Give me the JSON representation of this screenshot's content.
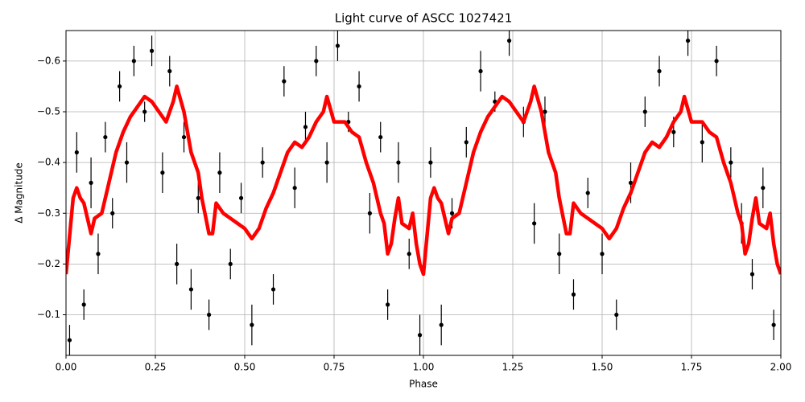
{
  "chart_data": {
    "type": "scatter",
    "title": "Light curve of ASCC 1027421",
    "x_label": "Phase",
    "y_label": "Δ Magnitude",
    "xlim": [
      0,
      2
    ],
    "ylim": [
      -0.02,
      -0.66
    ],
    "xticks": [
      {
        "value": 0,
        "label": "0.00"
      },
      {
        "value": 0.25,
        "label": "0.25"
      },
      {
        "value": 0.5,
        "label": "0.50"
      },
      {
        "value": 0.75,
        "label": "0.75"
      },
      {
        "value": 1,
        "label": "1.00"
      },
      {
        "value": 1.25,
        "label": "1.25"
      },
      {
        "value": 1.5,
        "label": "1.50"
      },
      {
        "value": 1.75,
        "label": "1.75"
      },
      {
        "value": 2,
        "label": "2.00"
      }
    ],
    "yticks": [
      {
        "value": -0.1,
        "label": "−0.1"
      },
      {
        "value": -0.2,
        "label": "−0.2"
      },
      {
        "value": -0.3,
        "label": "−0.3"
      },
      {
        "value": -0.4,
        "label": "−0.4"
      },
      {
        "value": -0.5,
        "label": "−0.5"
      },
      {
        "value": -0.6,
        "label": "−0.6"
      }
    ],
    "grid": true,
    "series": [
      {
        "type": "scatter",
        "color": "#000000",
        "x": [
          0.01,
          0.03,
          0.05,
          0.07,
          0.09,
          0.11,
          0.13,
          0.15,
          0.17,
          0.19,
          0.22,
          0.24,
          0.27,
          0.29,
          0.31,
          0.33,
          0.35,
          0.37,
          0.4,
          0.43,
          0.46,
          0.49,
          0.52,
          0.55,
          0.58,
          0.61,
          0.64,
          0.67,
          0.7,
          0.73,
          0.76,
          0.79,
          0.82,
          0.85,
          0.88,
          0.9,
          0.93,
          0.96,
          0.99,
          1.02,
          1.05,
          1.08,
          1.12,
          1.16,
          1.2,
          1.24,
          1.28,
          1.31,
          1.34,
          1.38,
          1.42,
          1.46,
          1.5,
          1.54,
          1.58,
          1.62,
          1.66,
          1.7,
          1.74,
          1.78,
          1.82,
          1.86,
          1.89,
          1.92,
          1.95,
          1.98
        ],
        "values": [
          -0.05,
          -0.42,
          -0.12,
          -0.36,
          -0.22,
          -0.45,
          -0.3,
          -0.55,
          -0.4,
          -0.6,
          -0.5,
          -0.62,
          -0.38,
          -0.58,
          -0.2,
          -0.45,
          -0.15,
          -0.33,
          -0.1,
          -0.38,
          -0.2,
          -0.33,
          -0.08,
          -0.4,
          -0.15,
          -0.56,
          -0.35,
          -0.47,
          -0.6,
          -0.4,
          -0.63,
          -0.48,
          -0.55,
          -0.3,
          -0.45,
          -0.12,
          -0.4,
          -0.22,
          -0.06,
          -0.4,
          -0.08,
          -0.3,
          -0.44,
          -0.58,
          -0.52,
          -0.64,
          -0.48,
          -0.28,
          -0.5,
          -0.22,
          -0.14,
          -0.34,
          -0.22,
          -0.1,
          -0.36,
          -0.5,
          -0.58,
          -0.46,
          -0.64,
          -0.44,
          -0.6,
          -0.4,
          -0.28,
          -0.18,
          -0.35,
          -0.08
        ],
        "errors": [
          0.03,
          0.04,
          0.03,
          0.05,
          0.04,
          0.03,
          0.03,
          0.03,
          0.04,
          0.03,
          0.02,
          0.03,
          0.04,
          0.03,
          0.04,
          0.03,
          0.04,
          0.03,
          0.03,
          0.04,
          0.03,
          0.03,
          0.04,
          0.03,
          0.03,
          0.03,
          0.04,
          0.03,
          0.03,
          0.04,
          0.03,
          0.02,
          0.03,
          0.04,
          0.03,
          0.03,
          0.04,
          0.03,
          0.04,
          0.03,
          0.04,
          0.03,
          0.03,
          0.04,
          0.02,
          0.03,
          0.03,
          0.04,
          0.03,
          0.04,
          0.03,
          0.03,
          0.04,
          0.03,
          0.04,
          0.03,
          0.03,
          0.03,
          0.03,
          0.04,
          0.03,
          0.03,
          0.04,
          0.03,
          0.04,
          0.03
        ]
      },
      {
        "type": "line",
        "color": "#ff0000",
        "x": [
          0,
          0.02,
          0.03,
          0.04,
          0.05,
          0.06,
          0.07,
          0.08,
          0.1,
          0.12,
          0.14,
          0.16,
          0.18,
          0.2,
          0.22,
          0.24,
          0.26,
          0.28,
          0.3,
          0.31,
          0.33,
          0.35,
          0.37,
          0.38,
          0.4,
          0.41,
          0.42,
          0.44,
          0.46,
          0.48,
          0.5,
          0.52,
          0.54,
          0.56,
          0.58,
          0.6,
          0.62,
          0.64,
          0.66,
          0.68,
          0.7,
          0.72,
          0.73,
          0.75,
          0.78,
          0.8,
          0.82,
          0.84,
          0.86,
          0.88,
          0.89,
          0.9,
          0.91,
          0.92,
          0.93,
          0.94,
          0.96,
          0.97,
          0.98,
          0.99,
          1.0,
          1.02,
          1.03,
          1.04,
          1.05,
          1.06,
          1.07,
          1.08,
          1.1,
          1.12,
          1.14,
          1.16,
          1.18,
          1.2,
          1.22,
          1.24,
          1.26,
          1.28,
          1.3,
          1.31,
          1.33,
          1.35,
          1.37,
          1.38,
          1.4,
          1.41,
          1.42,
          1.44,
          1.46,
          1.48,
          1.5,
          1.52,
          1.54,
          1.56,
          1.58,
          1.6,
          1.62,
          1.64,
          1.66,
          1.68,
          1.7,
          1.72,
          1.73,
          1.75,
          1.78,
          1.8,
          1.82,
          1.84,
          1.86,
          1.88,
          1.89,
          1.9,
          1.91,
          1.92,
          1.93,
          1.94,
          1.96,
          1.97,
          1.98,
          1.99,
          2.0
        ],
        "values": [
          -0.18,
          -0.33,
          -0.35,
          -0.33,
          -0.32,
          -0.29,
          -0.26,
          -0.29,
          -0.3,
          -0.36,
          -0.42,
          -0.46,
          -0.49,
          -0.51,
          -0.53,
          -0.52,
          -0.5,
          -0.48,
          -0.52,
          -0.55,
          -0.5,
          -0.42,
          -0.38,
          -0.33,
          -0.26,
          -0.26,
          -0.32,
          -0.3,
          -0.29,
          -0.28,
          -0.27,
          -0.25,
          -0.27,
          -0.31,
          -0.34,
          -0.38,
          -0.42,
          -0.44,
          -0.43,
          -0.45,
          -0.48,
          -0.5,
          -0.53,
          -0.48,
          -0.48,
          -0.46,
          -0.45,
          -0.4,
          -0.36,
          -0.3,
          -0.28,
          -0.22,
          -0.24,
          -0.29,
          -0.33,
          -0.28,
          -0.27,
          -0.3,
          -0.24,
          -0.2,
          -0.18,
          -0.33,
          -0.35,
          -0.33,
          -0.32,
          -0.29,
          -0.26,
          -0.29,
          -0.3,
          -0.36,
          -0.42,
          -0.46,
          -0.49,
          -0.51,
          -0.53,
          -0.52,
          -0.5,
          -0.48,
          -0.52,
          -0.55,
          -0.5,
          -0.42,
          -0.38,
          -0.33,
          -0.26,
          -0.26,
          -0.32,
          -0.3,
          -0.29,
          -0.28,
          -0.27,
          -0.25,
          -0.27,
          -0.31,
          -0.34,
          -0.38,
          -0.42,
          -0.44,
          -0.43,
          -0.45,
          -0.48,
          -0.5,
          -0.53,
          -0.48,
          -0.48,
          -0.46,
          -0.45,
          -0.4,
          -0.36,
          -0.3,
          -0.28,
          -0.22,
          -0.24,
          -0.29,
          -0.33,
          -0.28,
          -0.27,
          -0.3,
          -0.24,
          -0.2,
          -0.18
        ]
      }
    ]
  }
}
